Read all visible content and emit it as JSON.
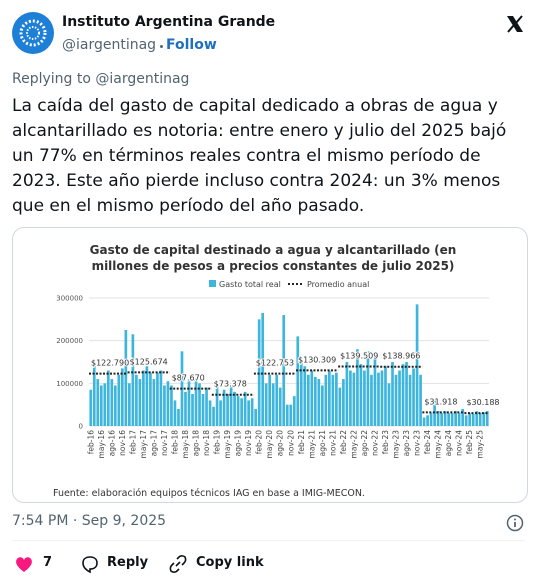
{
  "header": {
    "name": "Instituto Argentina Grande",
    "handle": "@iargentinag",
    "follow": "Follow"
  },
  "replying_to": "Replying to @iargentinag",
  "body": "La caída del gasto de capital dedicado a obras de agua y alcantarillado es notoria: entre enero y julio del 2025 bajó un 77% en términos reales contra el mismo período de 2023. Este año pierde incluso contra 2024: un 3% menos que en el mismo período del año pasado.",
  "chart_data": {
    "type": "bar",
    "title": "Gasto de capital destinado a agua y alcantarillado (en millones de pesos a precios constantes de julio 2025)",
    "source": "Fuente: elaboración equipos técnicos IAG en base a IMIG-MECON.",
    "categories": [
      "feb-16",
      null,
      null,
      "may-16",
      null,
      null,
      "ago-16",
      null,
      null,
      "nov-16",
      null,
      null,
      "feb-17",
      null,
      null,
      "may-17",
      null,
      null,
      "ago-17",
      null,
      null,
      "nov-17",
      null,
      null,
      "feb-18",
      null,
      null,
      "may-18",
      null,
      null,
      "ago-18",
      null,
      null,
      "nov-18",
      null,
      null,
      "feb-19",
      null,
      null,
      "may-19",
      null,
      null,
      "ago-19",
      null,
      null,
      "nov-19",
      null,
      null,
      "feb-20",
      null,
      null,
      "may-20",
      null,
      null,
      "ago-20",
      null,
      null,
      "nov-20",
      null,
      null,
      "feb-21",
      null,
      null,
      "may-21",
      null,
      null,
      "ago-21",
      null,
      null,
      "nov-21",
      null,
      null,
      "feb-22",
      null,
      null,
      "may-22",
      null,
      null,
      "ago-22",
      null,
      null,
      "nov-22",
      null,
      null,
      "feb-23",
      null,
      null,
      "may-23",
      null,
      null,
      "ago-23",
      null,
      null,
      "nov-23",
      null,
      null,
      "feb-24",
      null,
      null,
      "may-24",
      null,
      null,
      "ago-24",
      null,
      null,
      "nov-24",
      null,
      null,
      "feb-25",
      null,
      null,
      "may-25",
      null,
      null
    ],
    "series": [
      {
        "name": "Gasto total real",
        "color": "#3db5dc",
        "values": [
          85000,
          145000,
          110000,
          95000,
          100000,
          130000,
          110000,
          95000,
          120000,
          135000,
          225000,
          100000,
          215000,
          120000,
          110000,
          130000,
          140000,
          125000,
          110000,
          125000,
          130000,
          95000,
          105000,
          95000,
          60000,
          40000,
          175000,
          80000,
          110000,
          75000,
          110000,
          100000,
          75000,
          90000,
          60000,
          45000,
          100000,
          60000,
          85000,
          75000,
          95000,
          80000,
          70000,
          65000,
          80000,
          60000,
          65000,
          40000,
          250000,
          265000,
          100000,
          120000,
          100000,
          120000,
          90000,
          260000,
          50000,
          50000,
          70000,
          210000,
          150000,
          140000,
          120000,
          130000,
          115000,
          110000,
          95000,
          120000,
          130000,
          120000,
          125000,
          90000,
          110000,
          150000,
          130000,
          125000,
          180000,
          145000,
          130000,
          175000,
          120000,
          160000,
          125000,
          130000,
          140000,
          100000,
          150000,
          120000,
          130000,
          145000,
          150000,
          120000,
          135000,
          285000,
          120000,
          20000,
          25000,
          30000,
          60000,
          35000,
          30000,
          35000,
          30000,
          30000,
          35000,
          30000,
          40000,
          25000,
          30000,
          28000,
          35000,
          30000,
          32000,
          35000
        ]
      }
    ],
    "annual_average": {
      "name": "Promedio anual",
      "color": "#222222",
      "values": [
        122790,
        125674,
        87670,
        73378,
        122753,
        130309,
        139509,
        138966,
        31918,
        30188
      ],
      "value_labels": [
        "$122.790",
        "$125.674",
        "$87.670",
        "$73.378",
        "$122.753",
        "$130.309",
        "$139.509",
        "$138.966",
        "$31.918",
        "$30.188"
      ]
    },
    "ylim": [
      0,
      300000
    ],
    "yticks": [
      0,
      100000,
      200000,
      300000
    ],
    "grid": true
  },
  "timestamp": "7:54 PM · Sep 9, 2025",
  "actions": {
    "likes": "7",
    "reply": "Reply",
    "copy": "Copy link"
  }
}
